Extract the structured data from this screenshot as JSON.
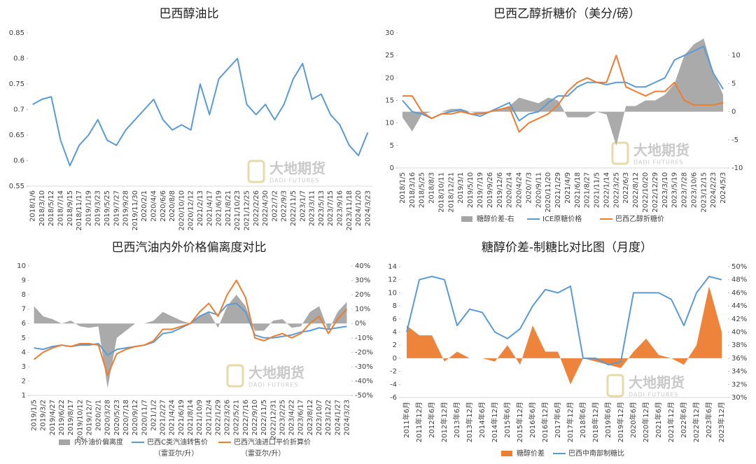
{
  "chart_data": [
    {
      "type": "line",
      "title": "巴西醇油比",
      "categories": [
        "2018/1/6",
        "2018/3/10",
        "2018/5/12",
        "2018/7/14",
        "2018/9/15",
        "2018/11/17",
        "2019/1/19",
        "2019/3/23",
        "2019/5/25",
        "2019/7/27",
        "2019/9/28",
        "2019/11/30",
        "2020/2/1",
        "2020/4/4",
        "2020/6/6",
        "2020/8/8",
        "2020/10/10",
        "2020/12/12",
        "2021/2/13",
        "2021/4/17",
        "2021/6/19",
        "2021/8/21",
        "2021/10/23",
        "2021/12/25",
        "2022/2/26",
        "2022/4/30",
        "2022/7/2",
        "2022/9/3",
        "2022/11/5",
        "2023/1/7",
        "2023/3/11",
        "2023/5/13",
        "2023/7/15",
        "2023/9/16",
        "2023/11/18",
        "2024/1/20",
        "2024/3/23"
      ],
      "values": [
        0.71,
        0.72,
        0.725,
        0.64,
        0.59,
        0.63,
        0.65,
        0.68,
        0.64,
        0.63,
        0.66,
        0.68,
        0.7,
        0.72,
        0.68,
        0.66,
        0.67,
        0.66,
        0.75,
        0.69,
        0.76,
        0.78,
        0.8,
        0.71,
        0.69,
        0.71,
        0.68,
        0.71,
        0.76,
        0.79,
        0.72,
        0.73,
        0.69,
        0.67,
        0.63,
        0.61,
        0.655
      ],
      "color": "#5b9bd5",
      "ylim": [
        0.55,
        0.85
      ],
      "yticks": [
        0.55,
        0.6,
        0.65,
        0.7,
        0.75,
        0.8,
        0.85
      ],
      "grid": false,
      "watermark": "大地期货",
      "watermark_en": "DADI FUTURES"
    },
    {
      "type": "combo",
      "title": "巴西乙醇折糖价（美分/磅）",
      "categories": [
        "2018/1/5",
        "2018/3/16",
        "2018/5/25",
        "2018/8/3",
        "2018/10/11",
        "2018/12/21",
        "2019/3/1",
        "2019/5/10",
        "2019/7/19",
        "2019/9/26",
        "2019/12/6",
        "2020/2/14",
        "2020/4/24",
        "2020/7/3",
        "2020/9/11",
        "2020/11/20",
        "2021/1/29",
        "2021/4/9",
        "2021/6/18",
        "2021/8/27",
        "2021/11/5",
        "2022/1/14",
        "2022/3/25",
        "2022/6/3",
        "2022/8/12",
        "2022/10/20",
        "2022/12/29",
        "2023/3/10",
        "2023/5/19",
        "2023/7/28",
        "2023/10/6",
        "2023/12/15",
        "2024/2/23",
        "2024/5/3"
      ],
      "series": [
        {
          "name": "糖醇价差-右",
          "color": "#a5a5a5",
          "mark": "area",
          "axis": "y2",
          "values": [
            -1,
            -3.5,
            -0.5,
            0,
            0,
            0.5,
            0.5,
            0,
            -0.5,
            0,
            0.5,
            1,
            2.5,
            2,
            1.5,
            2.5,
            2,
            -1,
            -1,
            -1,
            0,
            -0.5,
            -6,
            1,
            1,
            2,
            2,
            3,
            5,
            10,
            12,
            13,
            7,
            3
          ]
        },
        {
          "name": "ICE原糖价格",
          "color": "#5b9bd5",
          "mark": "line",
          "values": [
            15,
            12.5,
            12,
            11,
            12,
            12.5,
            13,
            12,
            11.5,
            12.5,
            13.5,
            14.5,
            10.5,
            12,
            12.5,
            14.5,
            16,
            16,
            18,
            19,
            19,
            18.5,
            19,
            19,
            18,
            18,
            19,
            20,
            24,
            25,
            26,
            27,
            21,
            17.5
          ]
        },
        {
          "name": "巴西乙醇折糖价",
          "color": "#ed7d31",
          "mark": "line",
          "values": [
            16,
            16,
            12.5,
            11,
            12,
            12,
            12.5,
            12,
            12,
            12.5,
            13,
            13.5,
            8,
            10,
            11,
            12,
            14,
            17,
            19,
            20,
            19,
            19,
            25,
            18,
            17,
            16,
            17,
            17,
            19,
            15,
            14,
            14,
            14,
            14.5
          ]
        }
      ],
      "ylim": [
        0,
        30
      ],
      "yticks": [
        0,
        5,
        10,
        15,
        20,
        25,
        30
      ],
      "y2lim": [
        -10,
        14
      ],
      "y2ticks": [
        -10,
        -5,
        0,
        5,
        10
      ],
      "grid": false,
      "watermark": "大地期货",
      "watermark_en": "DADI FUTURES"
    },
    {
      "type": "combo",
      "title": "巴西汽油内外价格偏离度对比",
      "categories": [
        "2019/1/5",
        "2019/3/2",
        "2019/4/27",
        "2019/6/22",
        "2019/8/17",
        "2019/10/12",
        "2019/12/7",
        "2020/2/1",
        "2020/3/28",
        "2020/5/23",
        "2020/7/18",
        "2020/9/12",
        "2020/11/7",
        "2021/1/2",
        "2021/2/27",
        "2021/4/24",
        "2021/6/19",
        "2021/8/14",
        "2021/10/9",
        "2021/12/4",
        "2022/1/29",
        "2022/3/26",
        "2022/5/21",
        "2022/7/16",
        "2022/9/10",
        "2022/11/5",
        "2022/12/31",
        "2023/2/25",
        "2023/4/22",
        "2023/6/17",
        "2023/8/12",
        "2023/10/7",
        "2023/12/2",
        "2024/1/27",
        "2024/3/23"
      ],
      "series": [
        {
          "name": "内外油价偏离度",
          "color": "#a5a5a5",
          "mark": "area",
          "axis": "y2",
          "values": [
            12,
            5,
            3,
            0,
            2,
            -2,
            -3,
            -2,
            -45,
            -10,
            -5,
            0,
            0,
            2,
            8,
            5,
            2,
            0,
            5,
            8,
            -3,
            12,
            20,
            12,
            -5,
            -5,
            2,
            3,
            -3,
            -2,
            8,
            12,
            -5,
            8,
            15
          ]
        },
        {
          "name": "巴西C类汽油转售价",
          "unit": "（雷亚尔/升）",
          "color": "#5b9bd5",
          "mark": "line",
          "values": [
            4.3,
            4.2,
            4.4,
            4.5,
            4.4,
            4.5,
            4.5,
            4.6,
            3.8,
            4.2,
            4.3,
            4.4,
            4.5,
            4.7,
            5.3,
            5.4,
            5.7,
            6.0,
            6.5,
            6.8,
            6.6,
            7.3,
            7.4,
            6.8,
            5.2,
            5.0,
            5.0,
            5.1,
            5.2,
            5.4,
            5.5,
            5.7,
            5.6,
            5.7,
            5.8
          ]
        },
        {
          "name": "巴西汽油进口平价折算价",
          "unit": "（雷亚尔/升）",
          "color": "#ed7d31",
          "mark": "line",
          "values": [
            3.5,
            4.0,
            4.3,
            4.5,
            4.4,
            4.6,
            4.6,
            4.5,
            2.4,
            3.9,
            4.2,
            4.4,
            4.5,
            4.8,
            5.6,
            5.6,
            5.8,
            6.0,
            6.8,
            7.4,
            6.5,
            8.0,
            9.0,
            7.8,
            5.0,
            4.8,
            5.1,
            5.3,
            5.0,
            5.3,
            6.0,
            6.5,
            5.3,
            6.3,
            7.0
          ]
        }
      ],
      "ylim": [
        1,
        10
      ],
      "yticks": [
        1,
        2,
        3,
        4,
        5,
        6,
        7,
        8,
        9,
        10
      ],
      "y2lim": [
        -50,
        40
      ],
      "y2ticks": [
        {
          "value": -50,
          "label": "-50%"
        },
        {
          "value": -40,
          "label": "-40%"
        },
        {
          "value": -30,
          "label": "-30%"
        },
        {
          "value": -20,
          "label": "-20%"
        },
        {
          "value": -10,
          "label": "-10%"
        },
        {
          "value": 0,
          "label": "0%"
        },
        {
          "value": 10,
          "label": "10%"
        },
        {
          "value": 20,
          "label": "20%"
        },
        {
          "value": 30,
          "label": "30%"
        },
        {
          "value": 40,
          "label": "40%"
        }
      ],
      "grid": false,
      "watermark": "大地期货",
      "watermark_en": "DADI FUTURES"
    },
    {
      "type": "combo",
      "title": "糖醇价差-制糖比对比图（月度）",
      "categories": [
        "2011年6月",
        "2011年12月",
        "2012年6月",
        "2012年12月",
        "2013年6月",
        "2013年12月",
        "2014年6月",
        "2014年12月",
        "2015年6月",
        "2015年12月",
        "2016年6月",
        "2016年12月",
        "2017年6月",
        "2017年12月",
        "2018年6月",
        "2018年12月",
        "2019年6月",
        "2019年12月",
        "2020年6月",
        "2020年12月",
        "2021年6月",
        "2021年12月",
        "2022年6月",
        "2022年12月",
        "2023年6月",
        "2023年12月"
      ],
      "series": [
        {
          "name": "糖醇价差",
          "color": "#ed7d31",
          "mark": "area",
          "values": [
            5,
            3.5,
            3.5,
            -0.5,
            1,
            0,
            0,
            -0.5,
            2,
            -1,
            5,
            1,
            1,
            -4,
            0,
            -0.5,
            -1,
            -1.5,
            1,
            3,
            0.5,
            0,
            -1,
            2,
            11,
            4
          ]
        },
        {
          "name": "巴西中南部制糖比",
          "color": "#5b9bd5",
          "mark": "line",
          "axis": "y2",
          "values": [
            40,
            48,
            48.5,
            48,
            41,
            43.5,
            43,
            40,
            39,
            40.5,
            44,
            46.5,
            46,
            47,
            36,
            36,
            35,
            35.5,
            46,
            46,
            46,
            45,
            41,
            46,
            48.5,
            48
          ]
        }
      ],
      "ylim": [
        -6,
        14
      ],
      "yticks": [
        -6,
        -4,
        -2,
        0,
        2,
        4,
        6,
        8,
        10,
        12,
        14
      ],
      "y2lim": [
        30,
        50
      ],
      "y2ticks": [
        {
          "value": 30,
          "label": "30%"
        },
        {
          "value": 32,
          "label": "32%"
        },
        {
          "value": 34,
          "label": "34%"
        },
        {
          "value": 36,
          "label": "36%"
        },
        {
          "value": 38,
          "label": "38%"
        },
        {
          "value": 40,
          "label": "40%"
        },
        {
          "value": 42,
          "label": "42%"
        },
        {
          "value": 44,
          "label": "44%"
        },
        {
          "value": 46,
          "label": "46%"
        },
        {
          "value": 48,
          "label": "48%"
        },
        {
          "value": 50,
          "label": "50%"
        }
      ],
      "grid": false,
      "watermark": "大地期货",
      "watermark_en": "DADI FUTURES"
    }
  ]
}
